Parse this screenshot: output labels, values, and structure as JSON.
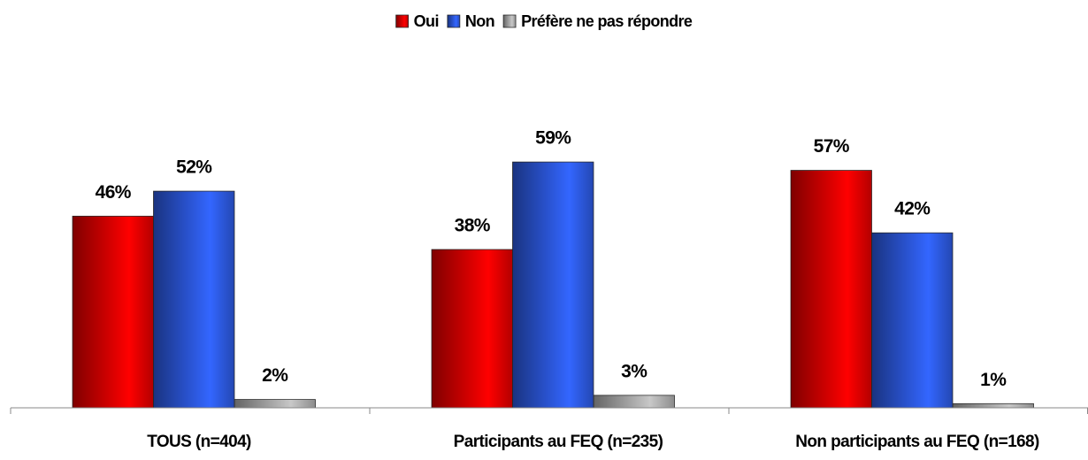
{
  "chart_data": {
    "type": "bar",
    "categories": [
      "TOUS (n=404)",
      "Participants au FEQ (n=235)",
      "Non participants au FEQ (n=168)"
    ],
    "series": [
      {
        "name": "Oui",
        "color": "#ff0000",
        "values": [
          46,
          38,
          57
        ],
        "value_labels": [
          "46%",
          "38%",
          "57%"
        ]
      },
      {
        "name": "Non",
        "color": "#3366ff",
        "values": [
          52,
          59,
          42
        ],
        "value_labels": [
          "52%",
          "59%",
          "42%"
        ]
      },
      {
        "name": "Préfère ne pas répondre",
        "color": "#c8c8c8",
        "values": [
          2,
          3,
          1
        ],
        "value_labels": [
          "2%",
          "3%",
          "1%"
        ]
      }
    ],
    "legend": "top"
  }
}
